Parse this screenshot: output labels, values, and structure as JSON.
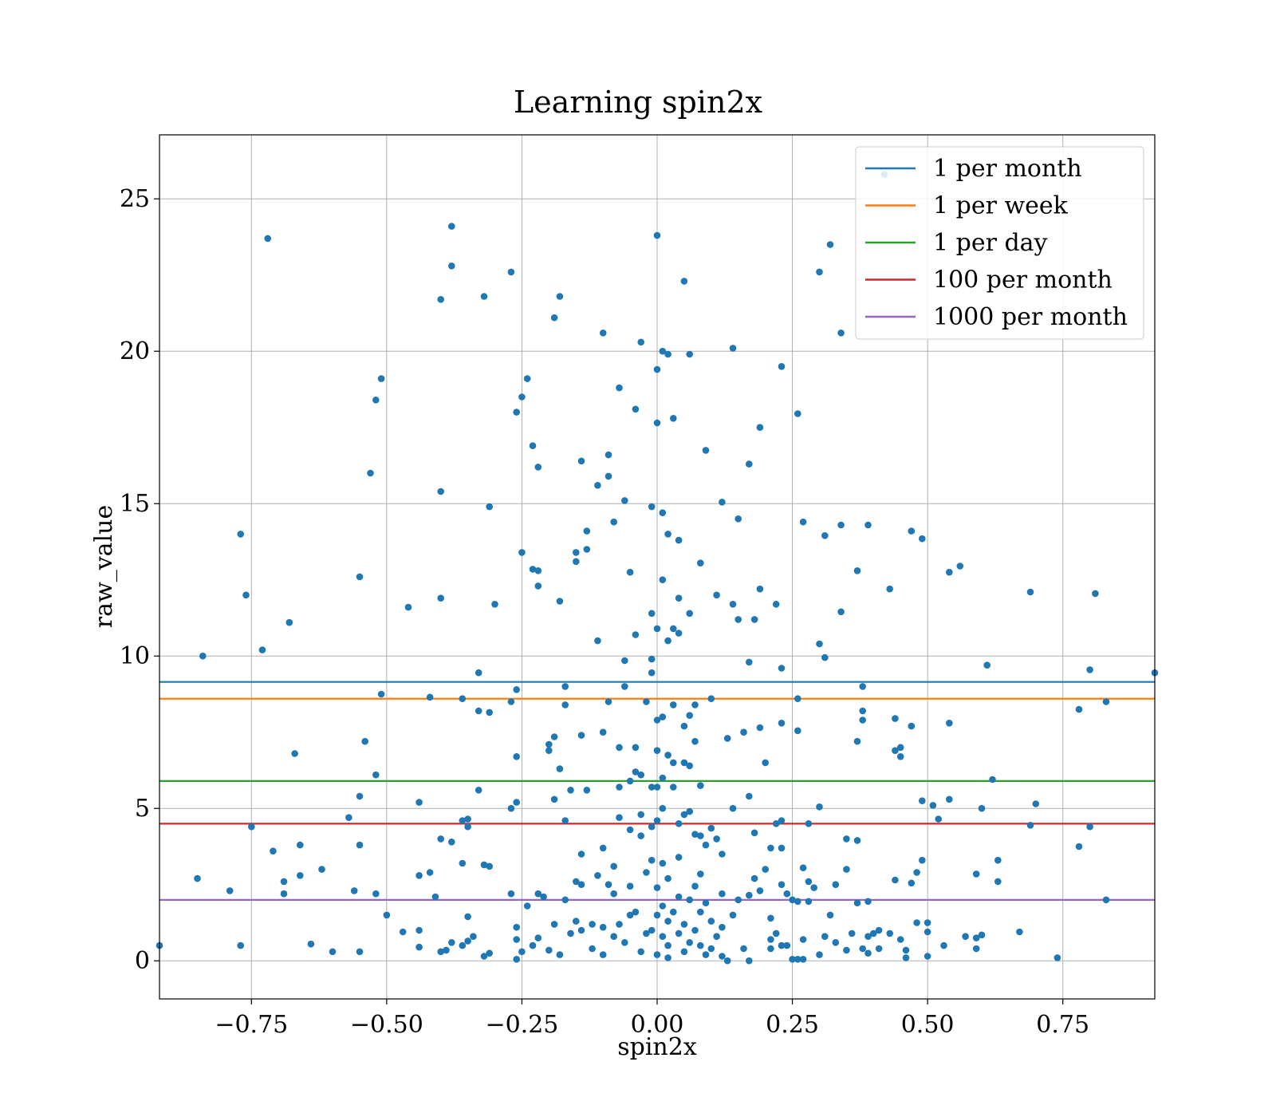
{
  "chart_data": {
    "type": "scatter",
    "title": "Learning spin2x",
    "xlabel": "spin2x",
    "ylabel": "raw_value",
    "xlim": [
      -0.92,
      0.92
    ],
    "ylim": [
      -1.25,
      27.1
    ],
    "xticks": [
      -0.75,
      -0.5,
      -0.25,
      0.0,
      0.25,
      0.5,
      0.75
    ],
    "xtick_labels": [
      "−0.75",
      "−0.50",
      "−0.25",
      "0.00",
      "0.25",
      "0.50",
      "0.75"
    ],
    "yticks": [
      0,
      5,
      10,
      15,
      20,
      25
    ],
    "ytick_labels": [
      "0",
      "5",
      "10",
      "15",
      "20",
      "25"
    ],
    "grid": true,
    "legend_position": "top-right",
    "point_color": "#1f77b4",
    "thresholds": [
      {
        "name": "1 per month",
        "value": 9.15,
        "color": "#1f77b4"
      },
      {
        "name": "1 per week",
        "value": 8.6,
        "color": "#ff7f0e"
      },
      {
        "name": "1 per day",
        "value": 5.9,
        "color": "#2ca02c"
      },
      {
        "name": "100 per month",
        "value": 4.5,
        "color": "#d62728"
      },
      {
        "name": "1000 per month",
        "value": 2.0,
        "color": "#9467bd"
      }
    ],
    "points": [
      [
        -0.92,
        0.5
      ],
      [
        -0.85,
        2.7
      ],
      [
        -0.84,
        10.0
      ],
      [
        -0.79,
        2.3
      ],
      [
        -0.77,
        14.0
      ],
      [
        -0.77,
        0.5
      ],
      [
        -0.76,
        12.0
      ],
      [
        -0.75,
        4.4
      ],
      [
        -0.73,
        10.2
      ],
      [
        -0.72,
        23.7
      ],
      [
        -0.71,
        3.6
      ],
      [
        -0.69,
        2.6
      ],
      [
        -0.69,
        2.2
      ],
      [
        -0.68,
        11.1
      ],
      [
        -0.67,
        6.8
      ],
      [
        -0.66,
        3.8
      ],
      [
        -0.66,
        2.8
      ],
      [
        -0.64,
        0.55
      ],
      [
        -0.62,
        3.0
      ],
      [
        -0.6,
        0.3
      ],
      [
        -0.57,
        4.7
      ],
      [
        -0.56,
        2.3
      ],
      [
        -0.55,
        12.6
      ],
      [
        -0.55,
        5.4
      ],
      [
        -0.55,
        3.8
      ],
      [
        -0.55,
        0.3
      ],
      [
        -0.54,
        7.2
      ],
      [
        -0.53,
        16.0
      ],
      [
        -0.52,
        18.4
      ],
      [
        -0.52,
        6.1
      ],
      [
        -0.52,
        2.2
      ],
      [
        -0.51,
        19.1
      ],
      [
        -0.51,
        8.75
      ],
      [
        -0.5,
        1.5
      ],
      [
        -0.46,
        11.6
      ],
      [
        -0.47,
        0.95
      ],
      [
        -0.44,
        5.2
      ],
      [
        -0.44,
        2.8
      ],
      [
        -0.44,
        1.0
      ],
      [
        -0.44,
        0.45
      ],
      [
        -0.42,
        8.65
      ],
      [
        -0.42,
        2.9
      ],
      [
        -0.41,
        2.1
      ],
      [
        -0.4,
        21.7
      ],
      [
        -0.4,
        15.4
      ],
      [
        -0.4,
        11.9
      ],
      [
        -0.4,
        4.0
      ],
      [
        -0.4,
        0.3
      ],
      [
        -0.38,
        24.1
      ],
      [
        -0.38,
        22.8
      ],
      [
        -0.38,
        3.9
      ],
      [
        -0.38,
        0.6
      ],
      [
        -0.39,
        0.35
      ],
      [
        -0.36,
        8.6
      ],
      [
        -0.36,
        4.6
      ],
      [
        -0.36,
        3.2
      ],
      [
        -0.36,
        0.5
      ],
      [
        -0.35,
        4.65
      ],
      [
        -0.35,
        4.4
      ],
      [
        -0.35,
        1.45
      ],
      [
        -0.35,
        0.65
      ],
      [
        -0.34,
        0.8
      ],
      [
        -0.33,
        9.45
      ],
      [
        -0.33,
        8.2
      ],
      [
        -0.33,
        5.6
      ],
      [
        -0.32,
        21.8
      ],
      [
        -0.32,
        3.15
      ],
      [
        -0.31,
        14.9
      ],
      [
        -0.31,
        8.15
      ],
      [
        -0.31,
        3.1
      ],
      [
        -0.3,
        11.7
      ],
      [
        -0.31,
        0.25
      ],
      [
        -0.32,
        0.15
      ],
      [
        -0.27,
        22.6
      ],
      [
        -0.27,
        8.5
      ],
      [
        -0.26,
        8.9
      ],
      [
        -0.26,
        6.7
      ],
      [
        -0.26,
        5.2
      ],
      [
        -0.27,
        5.0
      ],
      [
        -0.27,
        2.2
      ],
      [
        -0.26,
        1.1
      ],
      [
        -0.26,
        0.7
      ],
      [
        -0.26,
        0.05
      ],
      [
        -0.25,
        18.5
      ],
      [
        -0.26,
        18.0
      ],
      [
        -0.25,
        13.4
      ],
      [
        -0.25,
        0.3
      ],
      [
        -0.24,
        19.1
      ],
      [
        -0.24,
        1.8
      ],
      [
        -0.23,
        16.9
      ],
      [
        -0.23,
        12.85
      ],
      [
        -0.23,
        0.5
      ],
      [
        -0.22,
        16.2
      ],
      [
        -0.22,
        12.8
      ],
      [
        -0.22,
        12.3
      ],
      [
        -0.22,
        2.2
      ],
      [
        -0.22,
        0.75
      ],
      [
        -0.21,
        2.1
      ],
      [
        -0.2,
        7.1
      ],
      [
        -0.2,
        6.9
      ],
      [
        -0.2,
        0.35
      ],
      [
        -0.19,
        7.35
      ],
      [
        -0.19,
        21.1
      ],
      [
        -0.19,
        5.3
      ],
      [
        -0.19,
        1.2
      ],
      [
        -0.18,
        21.8
      ],
      [
        -0.18,
        11.8
      ],
      [
        -0.18,
        6.3
      ],
      [
        -0.18,
        0.2
      ],
      [
        -0.17,
        9.0
      ],
      [
        -0.17,
        8.4
      ],
      [
        -0.17,
        4.6
      ],
      [
        -0.17,
        2.0
      ],
      [
        -0.16,
        5.6
      ],
      [
        -0.16,
        0.9
      ],
      [
        -0.15,
        13.4
      ],
      [
        -0.15,
        13.1
      ],
      [
        -0.15,
        2.6
      ],
      [
        -0.15,
        1.3
      ],
      [
        -0.14,
        16.4
      ],
      [
        -0.14,
        7.4
      ],
      [
        -0.14,
        3.5
      ],
      [
        -0.14,
        2.5
      ],
      [
        -0.14,
        1.0
      ],
      [
        -0.13,
        14.1
      ],
      [
        -0.13,
        13.5
      ],
      [
        -0.13,
        5.6
      ],
      [
        -0.12,
        1.2
      ],
      [
        -0.12,
        0.4
      ],
      [
        -0.11,
        10.5
      ],
      [
        -0.11,
        15.6
      ],
      [
        -0.11,
        2.8
      ],
      [
        -0.1,
        20.6
      ],
      [
        -0.1,
        7.5
      ],
      [
        -0.1,
        3.7
      ],
      [
        -0.1,
        1.1
      ],
      [
        -0.1,
        0.2
      ],
      [
        -0.09,
        16.6
      ],
      [
        -0.09,
        15.9
      ],
      [
        -0.09,
        8.5
      ],
      [
        -0.09,
        2.5
      ],
      [
        -0.08,
        14.4
      ],
      [
        -0.08,
        3.1
      ],
      [
        -0.08,
        2.2
      ],
      [
        -0.08,
        0.8
      ],
      [
        -0.07,
        18.8
      ],
      [
        -0.07,
        7.0
      ],
      [
        -0.07,
        5.7
      ],
      [
        -0.07,
        4.7
      ],
      [
        -0.07,
        1.2
      ],
      [
        -0.06,
        15.1
      ],
      [
        -0.06,
        9.85
      ],
      [
        -0.06,
        9.0
      ],
      [
        -0.06,
        0.6
      ],
      [
        -0.05,
        12.75
      ],
      [
        -0.05,
        5.9
      ],
      [
        -0.05,
        4.3
      ],
      [
        -0.05,
        2.45
      ],
      [
        -0.05,
        1.5
      ],
      [
        -0.04,
        18.1
      ],
      [
        -0.04,
        10.7
      ],
      [
        -0.04,
        7.0
      ],
      [
        -0.04,
        6.2
      ],
      [
        -0.04,
        1.6
      ],
      [
        -0.03,
        20.3
      ],
      [
        -0.03,
        6.1
      ],
      [
        -0.03,
        4.8
      ],
      [
        -0.03,
        4.1
      ],
      [
        -0.03,
        0.3
      ],
      [
        -0.02,
        8.5
      ],
      [
        -0.02,
        2.9
      ],
      [
        -0.02,
        0.9
      ],
      [
        -0.01,
        14.9
      ],
      [
        -0.01,
        11.4
      ],
      [
        -0.01,
        9.9
      ],
      [
        -0.01,
        9.45
      ],
      [
        -0.01,
        5.7
      ],
      [
        -0.01,
        4.4
      ],
      [
        -0.01,
        3.3
      ],
      [
        -0.01,
        1.0
      ],
      [
        0.0,
        17.65
      ],
      [
        0.0,
        10.9
      ],
      [
        0.0,
        7.9
      ],
      [
        0.0,
        6.9
      ],
      [
        0.0,
        5.7
      ],
      [
        0.0,
        4.6
      ],
      [
        0.0,
        2.4
      ],
      [
        0.0,
        1.5
      ],
      [
        0.0,
        0.2
      ],
      [
        0.0,
        19.4
      ],
      [
        0.01,
        14.7
      ],
      [
        0.01,
        12.5
      ],
      [
        0.01,
        8.0
      ],
      [
        0.01,
        6.0
      ],
      [
        0.01,
        5.0
      ],
      [
        0.01,
        3.2
      ],
      [
        0.01,
        1.8
      ],
      [
        0.01,
        0.8
      ],
      [
        0.0,
        23.8
      ],
      [
        0.02,
        19.9
      ],
      [
        0.01,
        20.0
      ],
      [
        0.02,
        14.0
      ],
      [
        0.02,
        10.5
      ],
      [
        0.02,
        6.75
      ],
      [
        0.02,
        2.7
      ],
      [
        0.02,
        1.3
      ],
      [
        0.02,
        0.5
      ],
      [
        0.02,
        0.1
      ],
      [
        0.03,
        17.8
      ],
      [
        0.03,
        10.9
      ],
      [
        0.03,
        8.4
      ],
      [
        0.03,
        6.5
      ],
      [
        0.03,
        5.7
      ],
      [
        0.03,
        1.6
      ],
      [
        0.04,
        13.8
      ],
      [
        0.04,
        11.9
      ],
      [
        0.04,
        10.75
      ],
      [
        0.04,
        4.5
      ],
      [
        0.04,
        3.4
      ],
      [
        0.04,
        2.1
      ],
      [
        0.04,
        0.9
      ],
      [
        0.05,
        22.3
      ],
      [
        0.05,
        7.7
      ],
      [
        0.05,
        6.5
      ],
      [
        0.05,
        4.8
      ],
      [
        0.05,
        1.2
      ],
      [
        0.05,
        0.3
      ],
      [
        0.06,
        19.9
      ],
      [
        0.06,
        11.4
      ],
      [
        0.06,
        8.05
      ],
      [
        0.06,
        6.4
      ],
      [
        0.06,
        4.9
      ],
      [
        0.06,
        2.0
      ],
      [
        0.06,
        0.6
      ],
      [
        0.07,
        8.4
      ],
      [
        0.07,
        7.2
      ],
      [
        0.07,
        4.15
      ],
      [
        0.07,
        2.45
      ],
      [
        0.07,
        1.0
      ],
      [
        0.08,
        13.05
      ],
      [
        0.08,
        5.75
      ],
      [
        0.08,
        4.1
      ],
      [
        0.08,
        2.85
      ],
      [
        0.08,
        1.6
      ],
      [
        0.08,
        0.5
      ],
      [
        0.09,
        16.75
      ],
      [
        0.09,
        3.8
      ],
      [
        0.09,
        1.9
      ],
      [
        0.09,
        0.2
      ],
      [
        0.1,
        8.6
      ],
      [
        0.1,
        4.35
      ],
      [
        0.1,
        1.3
      ],
      [
        0.1,
        0.4
      ],
      [
        0.11,
        12.0
      ],
      [
        0.11,
        4.0
      ],
      [
        0.11,
        0.8
      ],
      [
        0.12,
        15.05
      ],
      [
        0.12,
        3.5
      ],
      [
        0.12,
        2.2
      ],
      [
        0.12,
        1.1
      ],
      [
        0.12,
        0.15
      ],
      [
        0.13,
        7.3
      ],
      [
        0.13,
        0.0
      ],
      [
        0.14,
        20.1
      ],
      [
        0.14,
        11.7
      ],
      [
        0.14,
        5.0
      ],
      [
        0.14,
        1.5
      ],
      [
        0.15,
        14.5
      ],
      [
        0.15,
        11.2
      ],
      [
        0.15,
        2.0
      ],
      [
        0.16,
        7.5
      ],
      [
        0.16,
        0.4
      ],
      [
        0.17,
        16.3
      ],
      [
        0.17,
        9.8
      ],
      [
        0.17,
        5.4
      ],
      [
        0.17,
        2.15
      ],
      [
        0.17,
        0.0
      ],
      [
        0.18,
        4.2
      ],
      [
        0.18,
        2.7
      ],
      [
        0.18,
        11.2
      ],
      [
        0.19,
        17.5
      ],
      [
        0.19,
        12.2
      ],
      [
        0.19,
        7.65
      ],
      [
        0.19,
        2.3
      ],
      [
        0.2,
        6.5
      ],
      [
        0.2,
        3.0
      ],
      [
        0.21,
        3.7
      ],
      [
        0.21,
        1.4
      ],
      [
        0.21,
        0.4
      ],
      [
        0.21,
        0.7
      ],
      [
        0.22,
        11.7
      ],
      [
        0.22,
        4.5
      ],
      [
        0.22,
        0.9
      ],
      [
        0.23,
        19.5
      ],
      [
        0.23,
        9.6
      ],
      [
        0.23,
        7.8
      ],
      [
        0.23,
        4.6
      ],
      [
        0.23,
        3.7
      ],
      [
        0.23,
        2.5
      ],
      [
        0.23,
        0.5
      ],
      [
        0.24,
        2.2
      ],
      [
        0.24,
        0.5
      ],
      [
        0.25,
        2.0
      ],
      [
        0.25,
        0.05
      ],
      [
        0.26,
        17.95
      ],
      [
        0.26,
        8.6
      ],
      [
        0.26,
        7.55
      ],
      [
        0.26,
        1.95
      ],
      [
        0.26,
        0.05
      ],
      [
        0.27,
        14.4
      ],
      [
        0.27,
        3.05
      ],
      [
        0.27,
        0.7
      ],
      [
        0.27,
        0.05
      ],
      [
        0.28,
        4.5
      ],
      [
        0.28,
        2.6
      ],
      [
        0.28,
        1.95
      ],
      [
        0.29,
        2.4
      ],
      [
        0.3,
        22.6
      ],
      [
        0.3,
        5.05
      ],
      [
        0.3,
        10.4
      ],
      [
        0.31,
        9.95
      ],
      [
        0.31,
        13.95
      ],
      [
        0.3,
        0.2
      ],
      [
        0.31,
        0.8
      ],
      [
        0.32,
        23.5
      ],
      [
        0.32,
        1.5
      ],
      [
        0.33,
        2.5
      ],
      [
        0.33,
        0.6
      ],
      [
        0.34,
        11.45
      ],
      [
        0.34,
        20.6
      ],
      [
        0.34,
        14.3
      ],
      [
        0.35,
        4.0
      ],
      [
        0.35,
        3.0
      ],
      [
        0.35,
        0.35
      ],
      [
        0.36,
        0.9
      ],
      [
        0.37,
        12.8
      ],
      [
        0.37,
        7.2
      ],
      [
        0.37,
        3.95
      ],
      [
        0.37,
        1.9
      ],
      [
        0.38,
        9.0
      ],
      [
        0.38,
        8.2
      ],
      [
        0.38,
        7.9
      ],
      [
        0.38,
        0.4
      ],
      [
        0.39,
        14.3
      ],
      [
        0.39,
        1.95
      ],
      [
        0.39,
        0.8
      ],
      [
        0.39,
        0.25
      ],
      [
        0.4,
        0.9
      ],
      [
        0.41,
        1.0
      ],
      [
        0.41,
        0.4
      ],
      [
        0.42,
        25.8
      ],
      [
        0.43,
        12.2
      ],
      [
        0.43,
        0.9
      ],
      [
        0.44,
        7.95
      ],
      [
        0.44,
        6.9
      ],
      [
        0.44,
        2.65
      ],
      [
        0.45,
        6.7
      ],
      [
        0.45,
        7.0
      ],
      [
        0.45,
        0.7
      ],
      [
        0.46,
        0.35
      ],
      [
        0.46,
        0.1
      ],
      [
        0.47,
        14.1
      ],
      [
        0.47,
        7.7
      ],
      [
        0.47,
        2.55
      ],
      [
        0.48,
        2.9
      ],
      [
        0.48,
        1.25
      ],
      [
        0.49,
        13.85
      ],
      [
        0.49,
        3.3
      ],
      [
        0.49,
        5.25
      ],
      [
        0.5,
        0.95
      ],
      [
        0.5,
        1.25
      ],
      [
        0.5,
        0.15
      ],
      [
        0.51,
        5.1
      ],
      [
        0.52,
        4.65
      ],
      [
        0.53,
        0.5
      ],
      [
        0.54,
        12.75
      ],
      [
        0.54,
        7.8
      ],
      [
        0.54,
        5.3
      ],
      [
        0.56,
        12.95
      ],
      [
        0.57,
        0.8
      ],
      [
        0.59,
        2.85
      ],
      [
        0.59,
        0.75
      ],
      [
        0.59,
        0.4
      ],
      [
        0.6,
        5.0
      ],
      [
        0.6,
        0.85
      ],
      [
        0.61,
        9.7
      ],
      [
        0.62,
        5.95
      ],
      [
        0.63,
        2.6
      ],
      [
        0.63,
        3.3
      ],
      [
        0.67,
        0.95
      ],
      [
        0.69,
        12.1
      ],
      [
        0.69,
        4.45
      ],
      [
        0.7,
        5.15
      ],
      [
        0.74,
        0.1
      ],
      [
        0.78,
        8.25
      ],
      [
        0.78,
        3.75
      ],
      [
        0.8,
        9.55
      ],
      [
        0.8,
        4.4
      ],
      [
        0.81,
        12.05
      ],
      [
        0.83,
        8.5
      ],
      [
        0.83,
        2.0
      ],
      [
        0.92,
        9.45
      ]
    ]
  }
}
